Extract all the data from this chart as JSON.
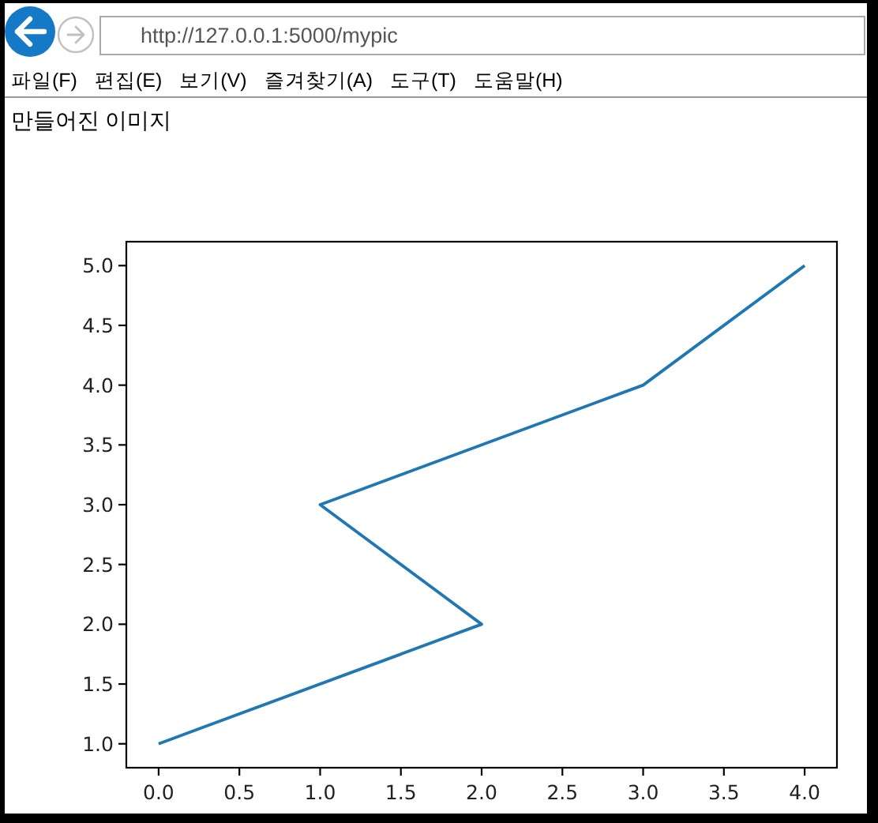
{
  "chart_data": {
    "type": "line",
    "title": "만들어진 이미지",
    "annotations": [
      "http://127.0.0.1:5000/mypic",
      "파일(F)",
      "편집(E)",
      "보기(V)",
      "즐겨찾기(A)",
      "도구(T)",
      "도움말(H)"
    ],
    "x": [
      0,
      2,
      1,
      3,
      4
    ],
    "values": [
      1,
      2,
      3,
      4,
      5
    ],
    "color": "#1f77b4",
    "line_style": "solid",
    "xlim": [
      -0.2,
      4.2
    ],
    "ylim": [
      0.8,
      5.2
    ],
    "xticks": [
      {
        "value": 0,
        "label": "0.0"
      },
      {
        "value": 0.5,
        "label": "0.5"
      },
      {
        "value": 1,
        "label": "1.0"
      },
      {
        "value": 1.5,
        "label": "1.5"
      },
      {
        "value": 2,
        "label": "2.0"
      },
      {
        "value": 2.5,
        "label": "2.5"
      },
      {
        "value": 3,
        "label": "3.0"
      },
      {
        "value": 3.5,
        "label": "3.5"
      },
      {
        "value": 4,
        "label": "4.0"
      }
    ],
    "yticks": [
      {
        "value": 1,
        "label": "1.0"
      },
      {
        "value": 1.5,
        "label": "1.5"
      },
      {
        "value": 2,
        "label": "2.0"
      },
      {
        "value": 2.5,
        "label": "2.5"
      },
      {
        "value": 3,
        "label": "3.0"
      },
      {
        "value": 3.5,
        "label": "3.5"
      },
      {
        "value": 4,
        "label": "4.0"
      },
      {
        "value": 4.5,
        "label": "4.5"
      },
      {
        "value": 5,
        "label": "5.0"
      }
    ]
  }
}
